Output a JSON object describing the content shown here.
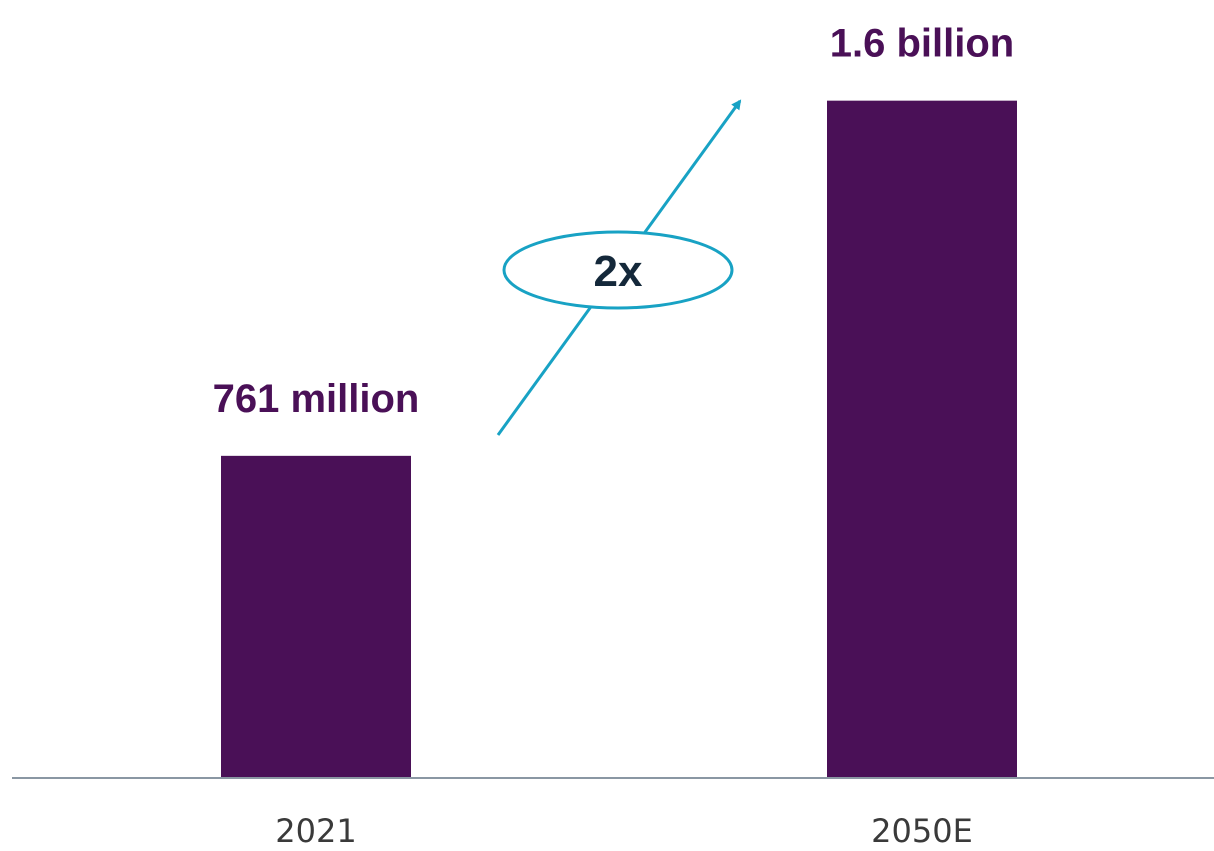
{
  "chart_data": {
    "type": "bar",
    "categories": [
      "2021",
      "2050E"
    ],
    "values": [
      761,
      1600
    ],
    "data_labels": [
      "761 million",
      "1.6 billion"
    ],
    "unit": "million",
    "ylim": [
      0,
      1800
    ],
    "grid": false,
    "legend": "none",
    "annotation": {
      "text": "2x",
      "shape": "ellipse-on-arrow",
      "from_category": "2021",
      "to_category": "2050E"
    },
    "colors": {
      "bar": "#4a1057",
      "data_label": "#4a1057",
      "arrow": "#18a2c4",
      "annotation_text": "#14283a",
      "axis": "#8a97a3",
      "category_text": "#3a3a3a"
    }
  }
}
